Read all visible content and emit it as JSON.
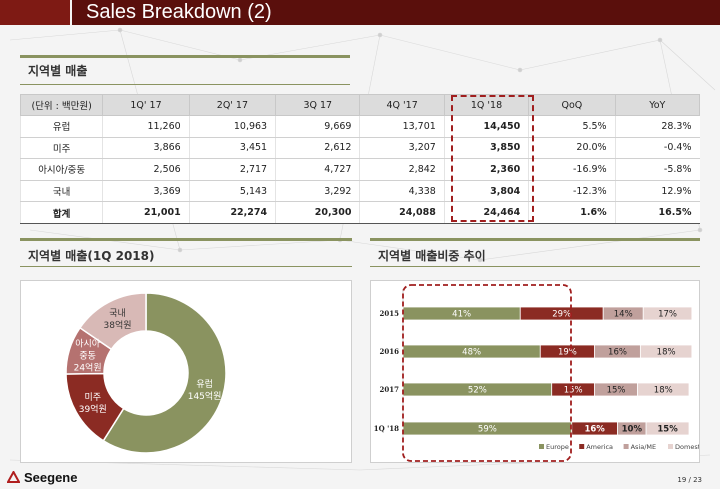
{
  "title": "Sales Breakdown (2)",
  "section_table": "지역별 매출",
  "table": {
    "headers": [
      "(단위 : 백만원)",
      "1Q' 17",
      "2Q' 17",
      "3Q 17",
      "4Q '17",
      "1Q '18",
      "QoQ",
      "YoY"
    ],
    "rows": [
      {
        "name": "유럽",
        "vals": [
          "11,260",
          "10,963",
          "9,669",
          "13,701",
          "14,450"
        ],
        "qoq": "5.5%",
        "yoy": "28.3%",
        "qoq_c": "red",
        "yoy_c": "red"
      },
      {
        "name": "미주",
        "vals": [
          "3,866",
          "3,451",
          "2,612",
          "3,207",
          "3,850"
        ],
        "qoq": "20.0%",
        "yoy": "-0.4%",
        "qoq_c": "red",
        "yoy_c": "blue"
      },
      {
        "name": "아시아/중동",
        "vals": [
          "2,506",
          "2,717",
          "4,727",
          "2,842",
          "2,360"
        ],
        "qoq": "-16.9%",
        "yoy": "-5.8%",
        "qoq_c": "blue",
        "yoy_c": "blue"
      },
      {
        "name": "국내",
        "vals": [
          "3,369",
          "5,143",
          "3,292",
          "4,338",
          "3,804"
        ],
        "qoq": "-12.3%",
        "yoy": "12.9%",
        "qoq_c": "blue",
        "yoy_c": "red"
      },
      {
        "name": "합계",
        "vals": [
          "21,001",
          "22,274",
          "20,300",
          "24,088",
          "24,464"
        ],
        "qoq": "1.6%",
        "yoy": "16.5%",
        "qoq_c": "red",
        "yoy_c": "red"
      }
    ]
  },
  "section_donut": "지역별 매출(1Q 2018)",
  "section_bars": "지역별 매출비중 추이",
  "chart_data": [
    {
      "type": "pie",
      "title": "지역별 매출(1Q 2018)",
      "categories": [
        "유럽",
        "미주",
        "아시아/중동",
        "국내"
      ],
      "values": [
        145,
        39,
        24,
        38
      ],
      "labels": [
        [
          "유럽",
          "145억원"
        ],
        [
          "미주",
          "39억원"
        ],
        [
          "아시아",
          "중동",
          "24억원"
        ],
        [
          "국내",
          "38억원"
        ]
      ],
      "colors": [
        "#8a9360",
        "#8b2b23",
        "#b57270",
        "#d8b9b6"
      ]
    },
    {
      "type": "bar",
      "stacked": true,
      "orientation": "horizontal",
      "title": "지역별 매출비중 추이",
      "categories": [
        "2015",
        "2016",
        "2017",
        "1Q '18"
      ],
      "series": [
        {
          "name": "Europe",
          "values": [
            41,
            48,
            52,
            59
          ],
          "color": "#8a9360"
        },
        {
          "name": "America",
          "values": [
            29,
            19,
            15,
            16
          ],
          "color": "#8b2b23"
        },
        {
          "name": "Asia/ME",
          "values": [
            14,
            16,
            15,
            10
          ],
          "color": "#c0a09c"
        },
        {
          "name": "Domestic",
          "values": [
            17,
            18,
            18,
            15
          ],
          "color": "#e6d3d0"
        }
      ]
    }
  ],
  "footer": {
    "logo": "Seegene",
    "page": "19 / 23"
  }
}
